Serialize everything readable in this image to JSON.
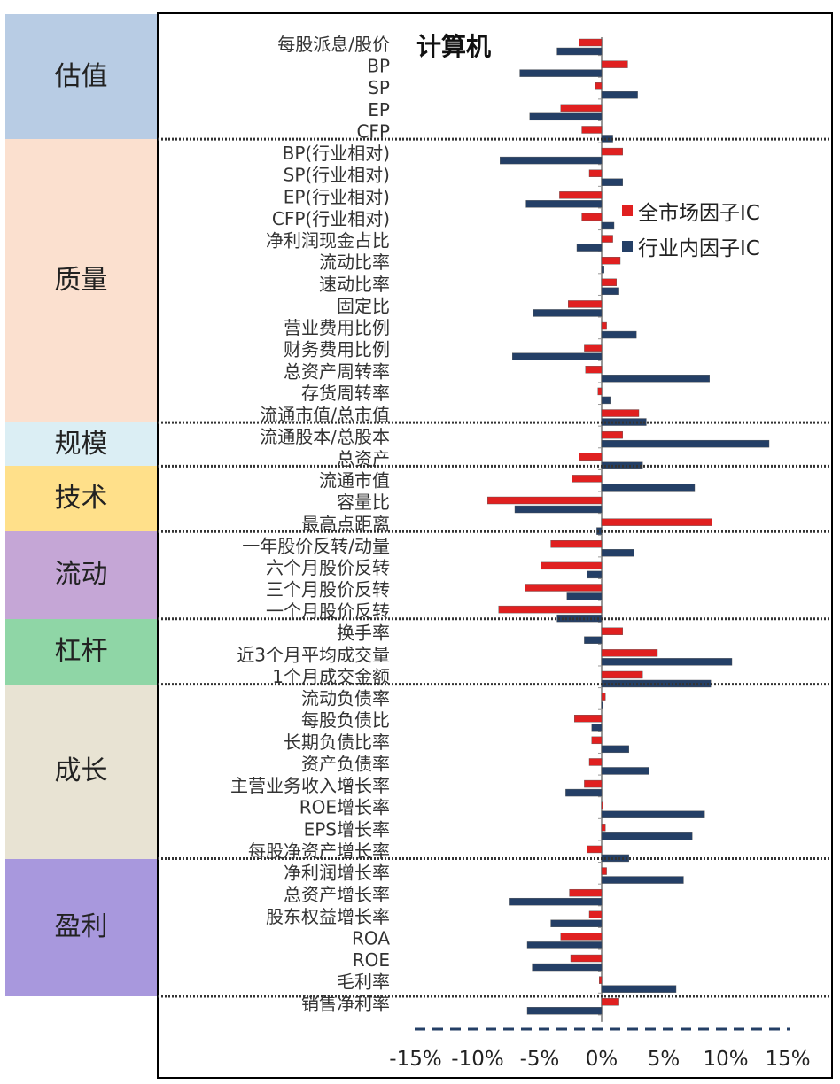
{
  "chart_data": {
    "type": "bar",
    "orientation": "horizontal",
    "title": "计算机",
    "xlim": [
      -15,
      15
    ],
    "x_ticks": [
      "-15%",
      "-10%",
      "-5%",
      "0%",
      "5%",
      "10%",
      "15%"
    ],
    "legend_position": "upper-right",
    "series": [
      {
        "name": "全市场因子IC",
        "color": "#e02020"
      },
      {
        "name": "行业内因子IC",
        "color": "#243f66"
      }
    ],
    "groups": [
      {
        "name": "估值",
        "color": "#b8cce4"
      },
      {
        "name": "质量",
        "color": "#fbe0cf"
      },
      {
        "name": "规模",
        "color": "#dbeef4"
      },
      {
        "name": "技术",
        "color": "#ffe08a"
      },
      {
        "name": "流动",
        "color": "#c5a6d6"
      },
      {
        "name": "杠杆",
        "color": "#8fd6a6"
      },
      {
        "name": "成长",
        "color": "#e8e3d3"
      },
      {
        "name": "盈利",
        "color": "#a898dd"
      }
    ],
    "factors": [
      {
        "label": "每股派息/股价",
        "group": "估值",
        "values": [
          -1.8,
          -3.6
        ]
      },
      {
        "label": "BP",
        "group": "估值",
        "values": [
          2.1,
          -6.6
        ]
      },
      {
        "label": "SP",
        "group": "估值",
        "values": [
          -0.5,
          2.9
        ]
      },
      {
        "label": "EP",
        "group": "估值",
        "values": [
          -3.3,
          -5.8
        ]
      },
      {
        "label": "CFP",
        "group": "估值",
        "values": [
          -1.6,
          0.9
        ]
      },
      {
        "label": "BP(行业相对)",
        "group": "质量",
        "values": [
          1.7,
          -8.2
        ]
      },
      {
        "label": "SP(行业相对)",
        "group": "质量",
        "values": [
          -1.0,
          1.7
        ]
      },
      {
        "label": "EP(行业相对)",
        "group": "质量",
        "values": [
          -3.4,
          -6.1
        ]
      },
      {
        "label": "CFP(行业相对)",
        "group": "质量",
        "values": [
          -1.6,
          1.0
        ]
      },
      {
        "label": "净利润现金占比",
        "group": "质量",
        "values": [
          0.9,
          -2.0
        ]
      },
      {
        "label": "流动比率",
        "group": "质量",
        "values": [
          1.5,
          0.2
        ]
      },
      {
        "label": "速动比率",
        "group": "质量",
        "values": [
          1.2,
          1.4
        ]
      },
      {
        "label": "固定比",
        "group": "质量",
        "values": [
          -2.7,
          -5.5
        ]
      },
      {
        "label": "营业费用比例",
        "group": "质量",
        "values": [
          0.4,
          2.8
        ]
      },
      {
        "label": "财务费用比例",
        "group": "质量",
        "values": [
          -1.4,
          -7.2
        ]
      },
      {
        "label": "总资产周转率",
        "group": "质量",
        "values": [
          -1.3,
          8.7
        ]
      },
      {
        "label": "存货周转率",
        "group": "质量",
        "values": [
          -0.3,
          0.7
        ]
      },
      {
        "label": "流通市值/总市值",
        "group": "质量",
        "values": [
          3.0,
          3.6
        ]
      },
      {
        "label": "流通股本/总股本",
        "group": "规模",
        "values": [
          1.7,
          13.5
        ]
      },
      {
        "label": "总资产",
        "group": "规模",
        "values": [
          -1.8,
          3.3
        ]
      },
      {
        "label": "流通市值",
        "group": "技术",
        "values": [
          -2.4,
          7.5
        ]
      },
      {
        "label": "容量比",
        "group": "技术",
        "values": [
          -9.2,
          -7.0
        ]
      },
      {
        "label": "最高点距离",
        "group": "技术",
        "values": [
          8.9,
          -0.4
        ]
      },
      {
        "label": "一年股价反转/动量",
        "group": "流动",
        "values": [
          -4.1,
          2.6
        ]
      },
      {
        "label": "六个月股价反转",
        "group": "流动",
        "values": [
          -4.9,
          -1.2
        ]
      },
      {
        "label": "三个月股价反转",
        "group": "流动",
        "values": [
          -6.2,
          -2.8
        ]
      },
      {
        "label": "一个月股价反转",
        "group": "流动",
        "values": [
          -8.3,
          -3.6
        ]
      },
      {
        "label": "换手率",
        "group": "杠杆",
        "values": [
          1.7,
          -1.4
        ]
      },
      {
        "label": "近3个月平均成交量",
        "group": "杠杆",
        "values": [
          4.5,
          10.5
        ]
      },
      {
        "label": "1个月成交金额",
        "group": "杠杆",
        "values": [
          3.3,
          8.8
        ]
      },
      {
        "label": "流动负债率",
        "group": "成长",
        "values": [
          0.3,
          0.1
        ]
      },
      {
        "label": "每股负债比",
        "group": "成长",
        "values": [
          -2.2,
          -0.8
        ]
      },
      {
        "label": "长期负债比率",
        "group": "成长",
        "values": [
          -0.8,
          2.2
        ]
      },
      {
        "label": "资产负债率",
        "group": "成长",
        "values": [
          -1.0,
          3.8
        ]
      },
      {
        "label": "主营业务收入增长率",
        "group": "成长",
        "values": [
          -1.4,
          -2.9
        ]
      },
      {
        "label": "ROE增长率",
        "group": "成长",
        "values": [
          0.1,
          8.3
        ]
      },
      {
        "label": "EPS增长率",
        "group": "成长",
        "values": [
          0.3,
          7.3
        ]
      },
      {
        "label": "每股净资产增长率",
        "group": "成长",
        "values": [
          -1.2,
          2.2
        ]
      },
      {
        "label": "净利润增长率",
        "group": "盈利",
        "values": [
          0.4,
          6.6
        ]
      },
      {
        "label": "总资产增长率",
        "group": "盈利",
        "values": [
          -2.6,
          -7.4
        ]
      },
      {
        "label": "股东权益增长率",
        "group": "盈利",
        "values": [
          -1.0,
          -4.1
        ]
      },
      {
        "label": "ROA",
        "group": "盈利",
        "values": [
          -3.3,
          -6.0
        ]
      },
      {
        "label": "ROE",
        "group": "盈利",
        "values": [
          -2.5,
          -5.6
        ]
      },
      {
        "label": "毛利率",
        "group": "盈利",
        "values": [
          -0.2,
          6.0
        ]
      },
      {
        "label": "销售净利率",
        "group": "盈利",
        "values": [
          1.4,
          -6.0
        ]
      }
    ]
  }
}
